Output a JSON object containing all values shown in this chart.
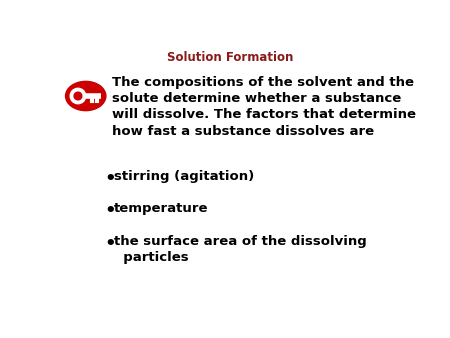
{
  "title": "Solution Formation",
  "title_color": "#8b1a1a",
  "title_fontsize": 8.5,
  "background_color": "#ffffff",
  "main_text_line1": "The compositions of the solvent and the",
  "main_text_line2": "solute determine whether a substance",
  "main_text_line3": "will dissolve. The factors that determine",
  "main_text_line4": "how fast a substance dissolves are",
  "bullet1": "stirring (agitation)",
  "bullet2": "temperature",
  "bullet3_line1": "the surface area of the dissolving",
  "bullet3_line2": "  particles",
  "text_color": "#000000",
  "main_fontsize": 9.5,
  "bullet_fontsize": 9.5,
  "key_circle_color": "#cc0000",
  "key_icon_color": "#ffffff"
}
